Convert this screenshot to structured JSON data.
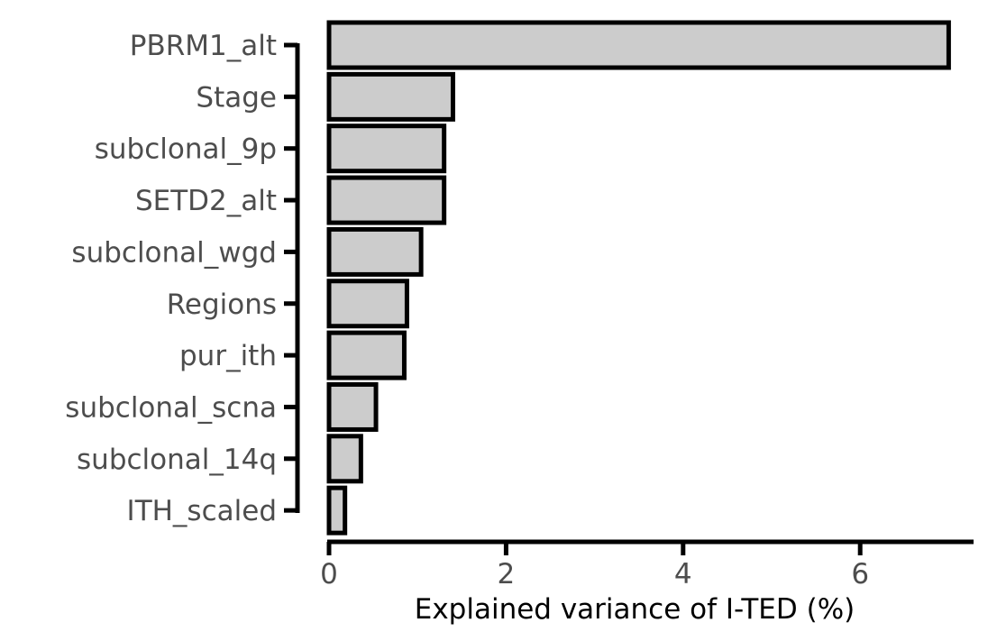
{
  "chart_data": {
    "type": "bar",
    "orientation": "horizontal",
    "title": "",
    "xlabel": "Explained variance of I-TED (%)",
    "ylabel": "",
    "xlim": [
      0,
      7.3
    ],
    "xticks": [
      0,
      2,
      4,
      6
    ],
    "xtick_labels": [
      "0",
      "2",
      "4",
      "6"
    ],
    "grid": false,
    "legend": "none",
    "categories": [
      "PBRM1_alt",
      "Stage",
      "subclonal_9p",
      "SETD2_alt",
      "subclonal_wgd",
      "Regions",
      "pur_ith",
      "subclonal_scna",
      "subclonal_14q",
      "ITH_scaled"
    ],
    "values": [
      7.0,
      1.4,
      1.3,
      1.3,
      1.04,
      0.88,
      0.85,
      0.53,
      0.36,
      0.18
    ],
    "colors": {
      "bar_fill": "#cccccc",
      "bar_stroke": "#000000",
      "axis": "#000000",
      "tick_label": "#4d4d4d"
    }
  }
}
